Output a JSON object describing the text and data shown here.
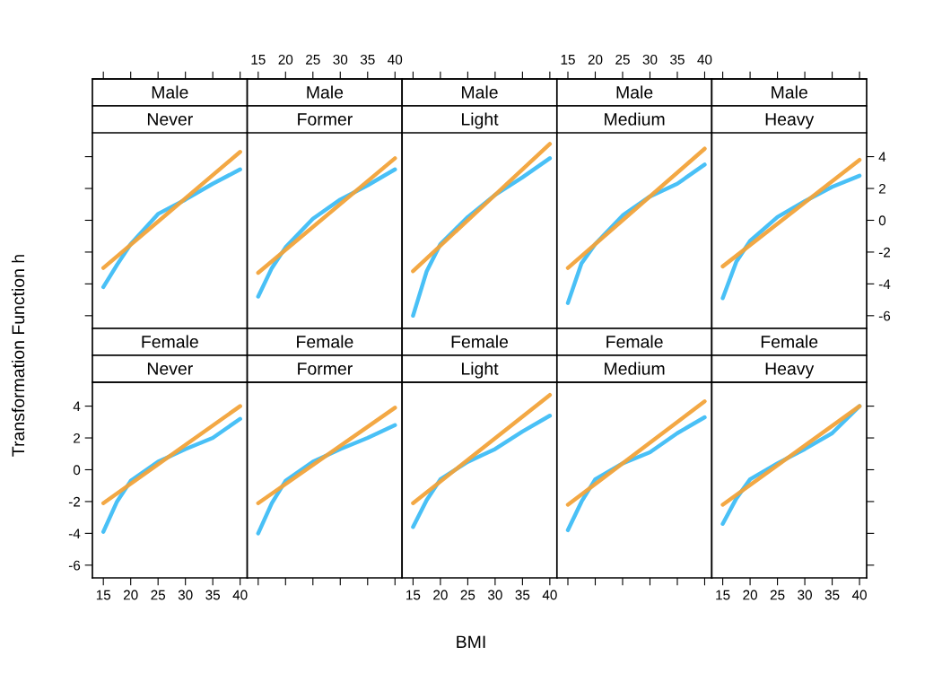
{
  "chart_data": [
    {
      "type": "line",
      "title": "Male",
      "subtitle": "Never",
      "xlim": [
        13,
        41.3
      ],
      "xticks": [
        15,
        20,
        25,
        30,
        35,
        40
      ],
      "ylim": [
        -6.8,
        5.5
      ],
      "yticks": [
        -6,
        -4,
        -2,
        0,
        2,
        4
      ],
      "tick_labels": false,
      "grid": false,
      "series": [
        {
          "color": "#3fbdf5",
          "x": [
            15,
            17.5,
            20,
            25,
            30,
            35,
            40
          ],
          "values": [
            -4.2,
            -2.8,
            -1.5,
            0.4,
            1.3,
            2.3,
            3.2
          ]
        },
        {
          "color": "#f2a33a",
          "x": [
            15,
            40
          ],
          "values": [
            -3.0,
            4.3
          ]
        }
      ]
    },
    {
      "type": "line",
      "title": "Male",
      "subtitle": "Former",
      "xlim": [
        13,
        41.3
      ],
      "xticks": [
        15,
        20,
        25,
        30,
        35,
        40
      ],
      "ylim": [
        -6.8,
        5.5
      ],
      "yticks": [
        -6,
        -4,
        -2,
        0,
        2,
        4
      ],
      "tick_labels": "x",
      "grid": false,
      "series": [
        {
          "color": "#3fbdf5",
          "x": [
            15,
            17.5,
            20,
            25,
            30,
            35,
            40
          ],
          "values": [
            -4.8,
            -3.0,
            -1.7,
            0.1,
            1.3,
            2.2,
            3.2
          ]
        },
        {
          "color": "#f2a33a",
          "x": [
            15,
            40
          ],
          "values": [
            -3.3,
            3.9
          ]
        }
      ]
    },
    {
      "type": "line",
      "title": "Male",
      "subtitle": "Light",
      "xlim": [
        13,
        41.3
      ],
      "xticks": [
        15,
        20,
        25,
        30,
        35,
        40
      ],
      "ylim": [
        -6.8,
        5.5
      ],
      "yticks": [
        -6,
        -4,
        -2,
        0,
        2,
        4
      ],
      "tick_labels": false,
      "grid": false,
      "series": [
        {
          "color": "#3fbdf5",
          "x": [
            15,
            17.5,
            20,
            25,
            30,
            35,
            40
          ],
          "values": [
            -6.0,
            -3.2,
            -1.5,
            0.2,
            1.6,
            2.7,
            3.9
          ]
        },
        {
          "color": "#f2a33a",
          "x": [
            15,
            40
          ],
          "values": [
            -3.2,
            4.8
          ]
        }
      ]
    },
    {
      "type": "line",
      "title": "Male",
      "subtitle": "Medium",
      "xlim": [
        13,
        41.3
      ],
      "xticks": [
        15,
        20,
        25,
        30,
        35,
        40
      ],
      "ylim": [
        -6.8,
        5.5
      ],
      "yticks": [
        -6,
        -4,
        -2,
        0,
        2,
        4
      ],
      "tick_labels": "x",
      "grid": false,
      "series": [
        {
          "color": "#3fbdf5",
          "x": [
            15,
            17.5,
            20,
            25,
            30,
            35,
            40
          ],
          "values": [
            -5.2,
            -2.7,
            -1.5,
            0.3,
            1.5,
            2.3,
            3.5
          ]
        },
        {
          "color": "#f2a33a",
          "x": [
            15,
            40
          ],
          "values": [
            -3.0,
            4.5
          ]
        }
      ]
    },
    {
      "type": "line",
      "title": "Male",
      "subtitle": "Heavy",
      "xlim": [
        13,
        41.3
      ],
      "xticks": [
        15,
        20,
        25,
        30,
        35,
        40
      ],
      "ylim": [
        -6.8,
        5.5
      ],
      "yticks": [
        -6,
        -4,
        -2,
        0,
        2,
        4
      ],
      "tick_labels": "y",
      "grid": false,
      "series": [
        {
          "color": "#3fbdf5",
          "x": [
            15,
            17.5,
            20,
            25,
            30,
            35,
            40
          ],
          "values": [
            -4.9,
            -2.6,
            -1.3,
            0.2,
            1.2,
            2.1,
            2.8
          ]
        },
        {
          "color": "#f2a33a",
          "x": [
            15,
            40
          ],
          "values": [
            -2.9,
            3.8
          ]
        }
      ]
    },
    {
      "type": "line",
      "title": "Female",
      "subtitle": "Never",
      "ylabel": "Transformation Function h",
      "xlim": [
        13,
        41.3
      ],
      "xticks": [
        15,
        20,
        25,
        30,
        35,
        40
      ],
      "ylim": [
        -6.8,
        5.5
      ],
      "yticks": [
        -6,
        -4,
        -2,
        0,
        2,
        4
      ],
      "grid": false,
      "series": [
        {
          "color": "#3fbdf5",
          "x": [
            15,
            17.5,
            20,
            25,
            30,
            35,
            40
          ],
          "values": [
            -3.9,
            -2.0,
            -0.7,
            0.5,
            1.3,
            2.0,
            3.2
          ]
        },
        {
          "color": "#f2a33a",
          "x": [
            15,
            40
          ],
          "values": [
            -2.1,
            4.0
          ]
        }
      ]
    },
    {
      "type": "line",
      "title": "Female",
      "subtitle": "Former",
      "xlim": [
        13,
        41.3
      ],
      "xticks": [
        15,
        20,
        25,
        30,
        35,
        40
      ],
      "ylim": [
        -6.8,
        5.5
      ],
      "yticks": [
        -6,
        -4,
        -2,
        0,
        2,
        4
      ],
      "tick_labels": false,
      "grid": false,
      "series": [
        {
          "color": "#3fbdf5",
          "x": [
            15,
            17.5,
            20,
            25,
            30,
            35,
            40
          ],
          "values": [
            -4.0,
            -2.1,
            -0.7,
            0.5,
            1.3,
            2.0,
            2.8
          ]
        },
        {
          "color": "#f2a33a",
          "x": [
            15,
            40
          ],
          "values": [
            -2.1,
            3.9
          ]
        }
      ]
    },
    {
      "type": "line",
      "title": "Female",
      "subtitle": "Light",
      "xlabel": "BMI",
      "xlim": [
        13,
        41.3
      ],
      "xticks": [
        15,
        20,
        25,
        30,
        35,
        40
      ],
      "ylim": [
        -6.8,
        5.5
      ],
      "yticks": [
        -6,
        -4,
        -2,
        0,
        2,
        4
      ],
      "tick_labels": "x",
      "grid": false,
      "series": [
        {
          "color": "#3fbdf5",
          "x": [
            15,
            17.5,
            20,
            25,
            30,
            35,
            40
          ],
          "values": [
            -3.6,
            -1.9,
            -0.6,
            0.5,
            1.3,
            2.4,
            3.4
          ]
        },
        {
          "color": "#f2a33a",
          "x": [
            15,
            40
          ],
          "values": [
            -2.1,
            4.7
          ]
        }
      ]
    },
    {
      "type": "line",
      "title": "Female",
      "subtitle": "Medium",
      "xlim": [
        13,
        41.3
      ],
      "xticks": [
        15,
        20,
        25,
        30,
        35,
        40
      ],
      "ylim": [
        -6.8,
        5.5
      ],
      "yticks": [
        -6,
        -4,
        -2,
        0,
        2,
        4
      ],
      "tick_labels": false,
      "grid": false,
      "series": [
        {
          "color": "#3fbdf5",
          "x": [
            15,
            17.5,
            20,
            25,
            30,
            35,
            40
          ],
          "values": [
            -3.8,
            -2.0,
            -0.6,
            0.4,
            1.1,
            2.3,
            3.3
          ]
        },
        {
          "color": "#f2a33a",
          "x": [
            15,
            40
          ],
          "values": [
            -2.2,
            4.3
          ]
        }
      ]
    },
    {
      "type": "line",
      "title": "Female",
      "subtitle": "Heavy",
      "xlim": [
        13,
        41.3
      ],
      "xticks": [
        15,
        20,
        25,
        30,
        35,
        40
      ],
      "ylim": [
        -6.8,
        5.5
      ],
      "yticks": [
        -6,
        -4,
        -2,
        0,
        2,
        4
      ],
      "tick_labels": "x",
      "grid": false,
      "series": [
        {
          "color": "#3fbdf5",
          "x": [
            15,
            17.5,
            20,
            25,
            30,
            35,
            40
          ],
          "values": [
            -3.4,
            -1.8,
            -0.6,
            0.4,
            1.3,
            2.3,
            4.0
          ]
        },
        {
          "color": "#f2a33a",
          "x": [
            15,
            40
          ],
          "values": [
            -2.2,
            4.0
          ]
        }
      ]
    }
  ]
}
